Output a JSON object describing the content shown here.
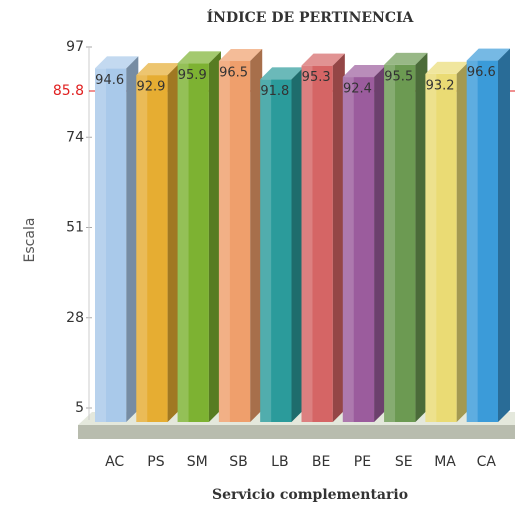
{
  "chart_data": {
    "type": "bar3d",
    "title": "ÍNDICE DE PERTINENCIA",
    "x_label": "Servicio complementario",
    "y_label": "Escala",
    "categories": [
      "AC",
      "PS",
      "SM",
      "SB",
      "LB",
      "BE",
      "PE",
      "SE",
      "MA",
      "CA"
    ],
    "values": [
      94.6,
      92.9,
      95.9,
      96.5,
      91.8,
      95.3,
      92.4,
      95.5,
      93.2,
      96.6
    ],
    "colors": [
      "#a9c9ea",
      "#e6ad32",
      "#7db232",
      "#ef9f6c",
      "#2b9b9b",
      "#d56565",
      "#9b5c9d",
      "#6c9a52",
      "#eadb74",
      "#3b9bd9"
    ],
    "ylim": [
      5,
      97
    ],
    "yticks": [
      5,
      28,
      51,
      74,
      97
    ],
    "reference_line": {
      "value": 85.8,
      "color": "#e02020"
    }
  }
}
